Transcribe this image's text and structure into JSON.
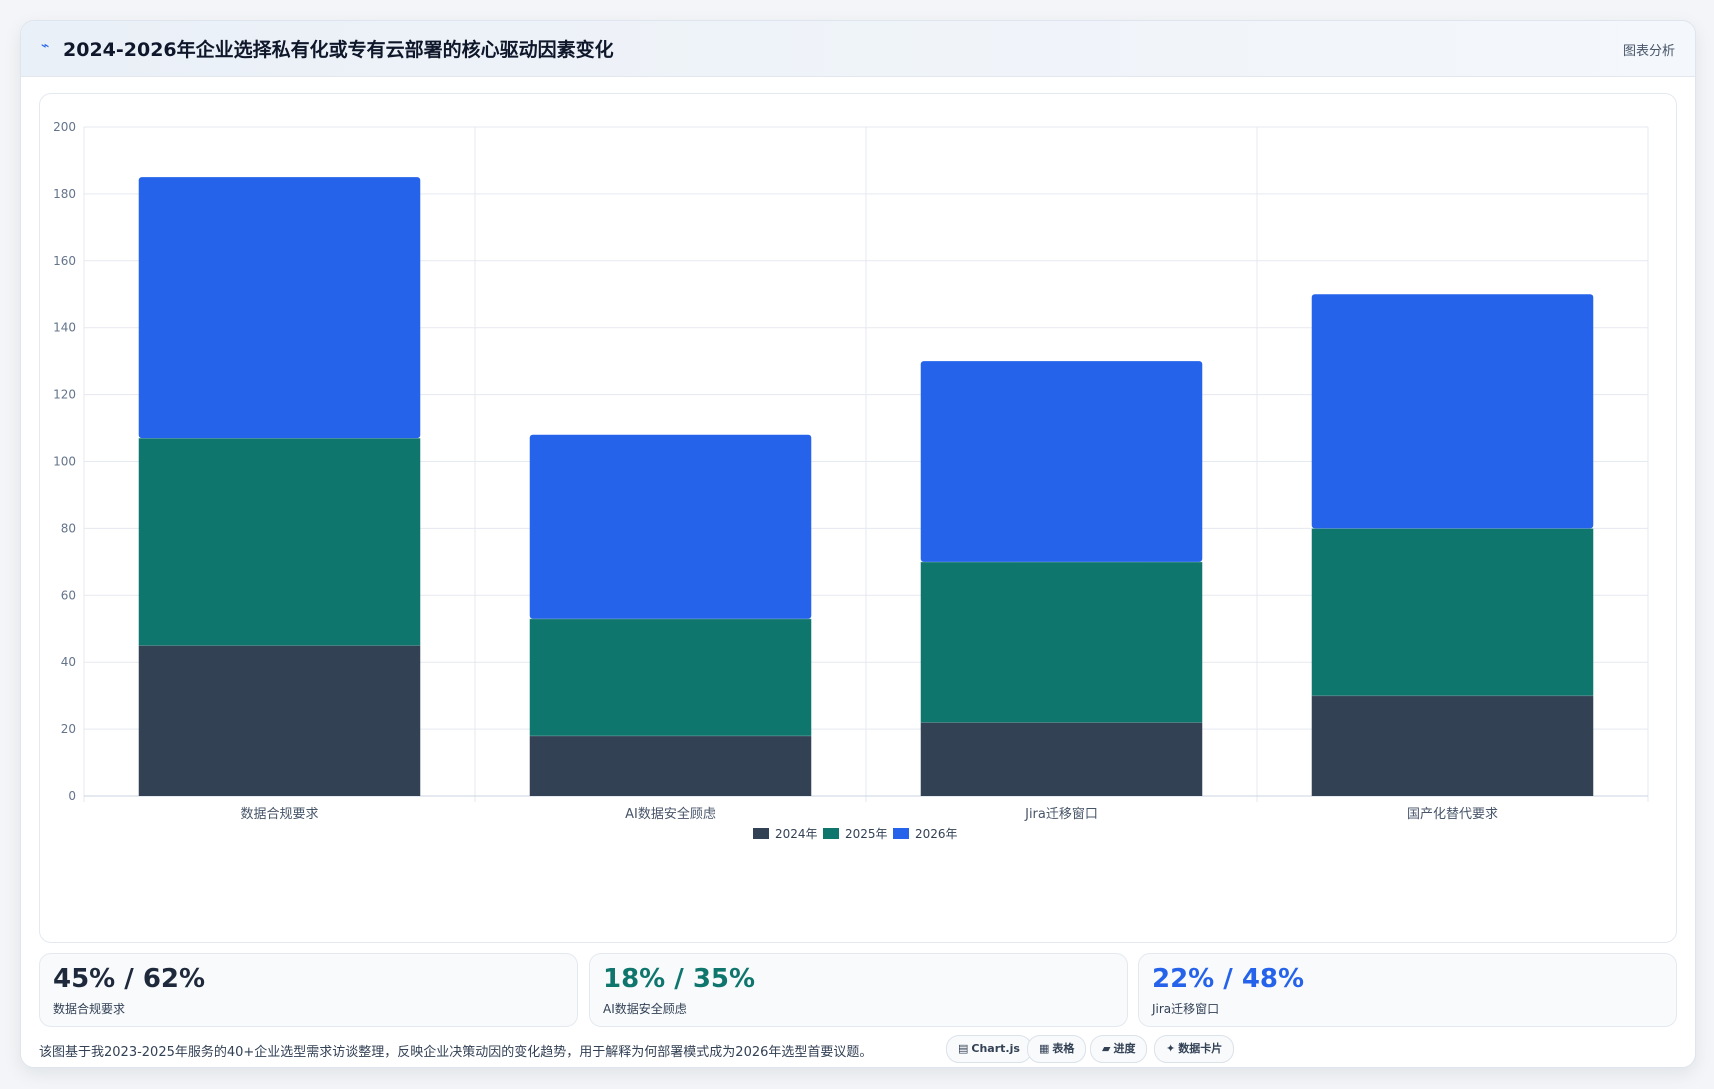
{
  "header": {
    "title": "2024-2026年企业选择私有化或专有云部署的核心驱动因素变化",
    "link": "图表分析"
  },
  "colors": {
    "y2024": "#334155",
    "y2025": "#0f766e",
    "y2026": "#2563eb"
  },
  "chart_data": {
    "type": "bar",
    "stacked": true,
    "categories": [
      "数据合规要求",
      "AI数据安全顾虑",
      "Jira迁移窗口",
      "国产化替代要求"
    ],
    "series": [
      {
        "name": "2024年",
        "values": [
          45,
          18,
          22,
          30
        ],
        "color": "#334155"
      },
      {
        "name": "2025年",
        "values": [
          62,
          35,
          48,
          50
        ],
        "color": "#0f766e"
      },
      {
        "name": "2026年",
        "values": [
          78,
          55,
          60,
          70
        ],
        "color": "#2563eb"
      }
    ],
    "ylim": [
      0,
      200
    ],
    "yticks": [
      0,
      20,
      40,
      60,
      80,
      100,
      120,
      140,
      160,
      180,
      200
    ],
    "grid": true,
    "legend": "bottom"
  },
  "stats": [
    {
      "value": "45% / 62%",
      "label": "数据合规要求",
      "color": "#1e293b"
    },
    {
      "value": "18% / 35%",
      "label": "AI数据安全顾虑",
      "color": "#0f766e"
    },
    {
      "value": "22% / 48%",
      "label": "Jira迁移窗口",
      "color": "#2563eb"
    }
  ],
  "footnote": "该图基于我2023-2025年服务的40+企业选型需求访谈整理，反映企业决策动因的变化趋势，用于解释为何部署模式成为2026年选型首要议题。",
  "chips": [
    {
      "icon": "▤",
      "icon_name": "chart-icon",
      "label": "Chart.js"
    },
    {
      "icon": "▦",
      "icon_name": "table-icon",
      "label": "表格"
    },
    {
      "icon": "▰",
      "icon_name": "progress-icon",
      "label": "进度"
    },
    {
      "icon": "✦",
      "icon_name": "card-icon",
      "label": "数据卡片"
    }
  ]
}
